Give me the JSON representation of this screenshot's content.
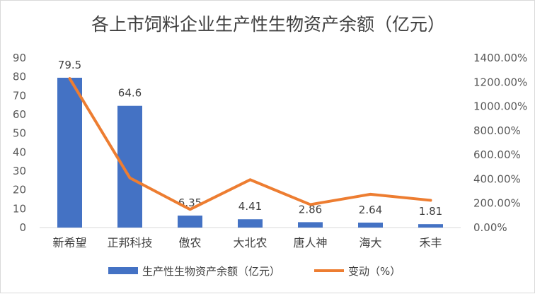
{
  "chart_data": {
    "type": "bar",
    "title": "各上市饲料企业生产性生物资产余额（亿元）",
    "categories": [
      "新希望",
      "正邦科技",
      "傲农",
      "大北农",
      "唐人神",
      "海大",
      "禾丰"
    ],
    "series": [
      {
        "name": "生产性生物资产余额（亿元）",
        "type": "bar",
        "axis": "left",
        "values": [
          79.5,
          64.6,
          6.35,
          4.41,
          2.86,
          2.64,
          1.81
        ],
        "data_labels": [
          "79.5",
          "64.6",
          "6.35",
          "4.41",
          "2.86",
          "2.64",
          "1.81"
        ],
        "color": "#4472c4"
      },
      {
        "name": "变动（%）",
        "type": "line",
        "axis": "right",
        "values": [
          1230,
          410,
          150,
          395,
          190,
          275,
          225
        ],
        "color": "#ed7d31"
      }
    ],
    "y_left": {
      "ylim": [
        0,
        90
      ],
      "ticks": [
        "0",
        "10",
        "20",
        "30",
        "40",
        "50",
        "60",
        "70",
        "80",
        "90"
      ]
    },
    "y_right": {
      "ylim": [
        0,
        1400
      ],
      "ticks": [
        "0.00%",
        "200.00%",
        "400.00%",
        "600.00%",
        "800.00%",
        "1000.00%",
        "1200.00%",
        "1400.00%"
      ]
    },
    "grid": false,
    "legend_position": "bottom"
  }
}
